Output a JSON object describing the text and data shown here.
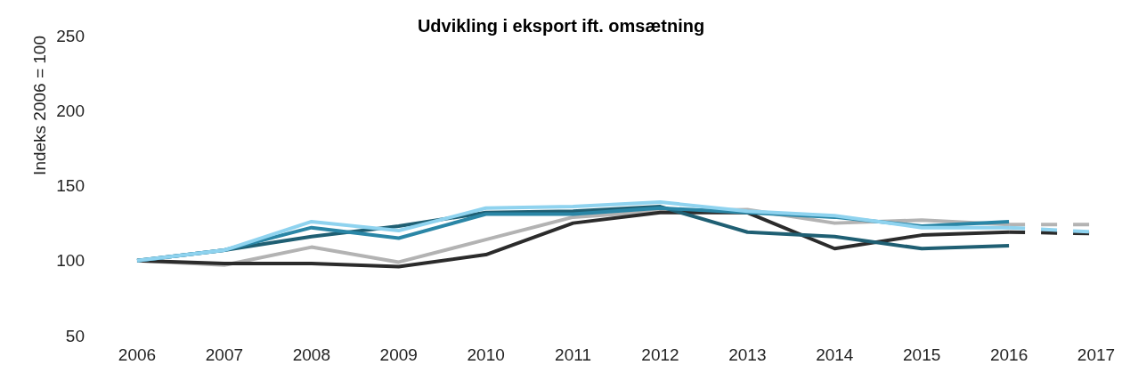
{
  "chart_data": {
    "type": "line",
    "title": "Udvikling i eksport ift. omsætning",
    "ylabel": "Indeks 2006 = 100",
    "x": [
      2006,
      2007,
      2008,
      2009,
      2010,
      2011,
      2012,
      2013,
      2014,
      2015,
      2016,
      2017
    ],
    "series": [
      {
        "color": "#b3b3b3",
        "values": [
          100,
          97,
          109,
          99,
          114,
          129,
          133,
          134,
          125,
          127,
          124,
          null
        ]
      },
      {
        "color": "#2b2b2b",
        "values": [
          100,
          98,
          98,
          96,
          104,
          125,
          132,
          132,
          108,
          117,
          119,
          null
        ]
      },
      {
        "color": "#1f5f73",
        "values": [
          100,
          107,
          116,
          123,
          132,
          133,
          136,
          119,
          116,
          108,
          110,
          null
        ]
      },
      {
        "color": "#2a86a6",
        "values": [
          100,
          107,
          122,
          115,
          131,
          131,
          135,
          132,
          129,
          123,
          126,
          null
        ]
      },
      {
        "color": "#8fd3ef",
        "values": [
          100,
          107,
          126,
          120,
          135,
          136,
          139,
          133,
          130,
          122,
          122,
          null
        ]
      },
      {
        "color": "#b3b3b3",
        "values": [
          null,
          null,
          null,
          null,
          null,
          null,
          null,
          null,
          null,
          null,
          124,
          124
        ],
        "line_style": "dashed"
      },
      {
        "color": "#2b2b2b",
        "values": [
          null,
          null,
          null,
          null,
          null,
          null,
          null,
          null,
          null,
          null,
          119,
          118
        ],
        "line_style": "dashed"
      },
      {
        "color": "#8fd3ef",
        "values": [
          null,
          null,
          null,
          null,
          null,
          null,
          null,
          null,
          null,
          null,
          122,
          119
        ],
        "line_style": "dashed"
      }
    ],
    "xlim": [
      2006,
      2017
    ],
    "xticks": [
      2006,
      2007,
      2008,
      2009,
      2010,
      2011,
      2012,
      2013,
      2014,
      2015,
      2016,
      2017
    ],
    "ylim": [
      50,
      250
    ],
    "yticks": [
      50,
      100,
      150,
      200,
      250
    ],
    "grid": false,
    "marker": "none",
    "line_style": "solid"
  }
}
